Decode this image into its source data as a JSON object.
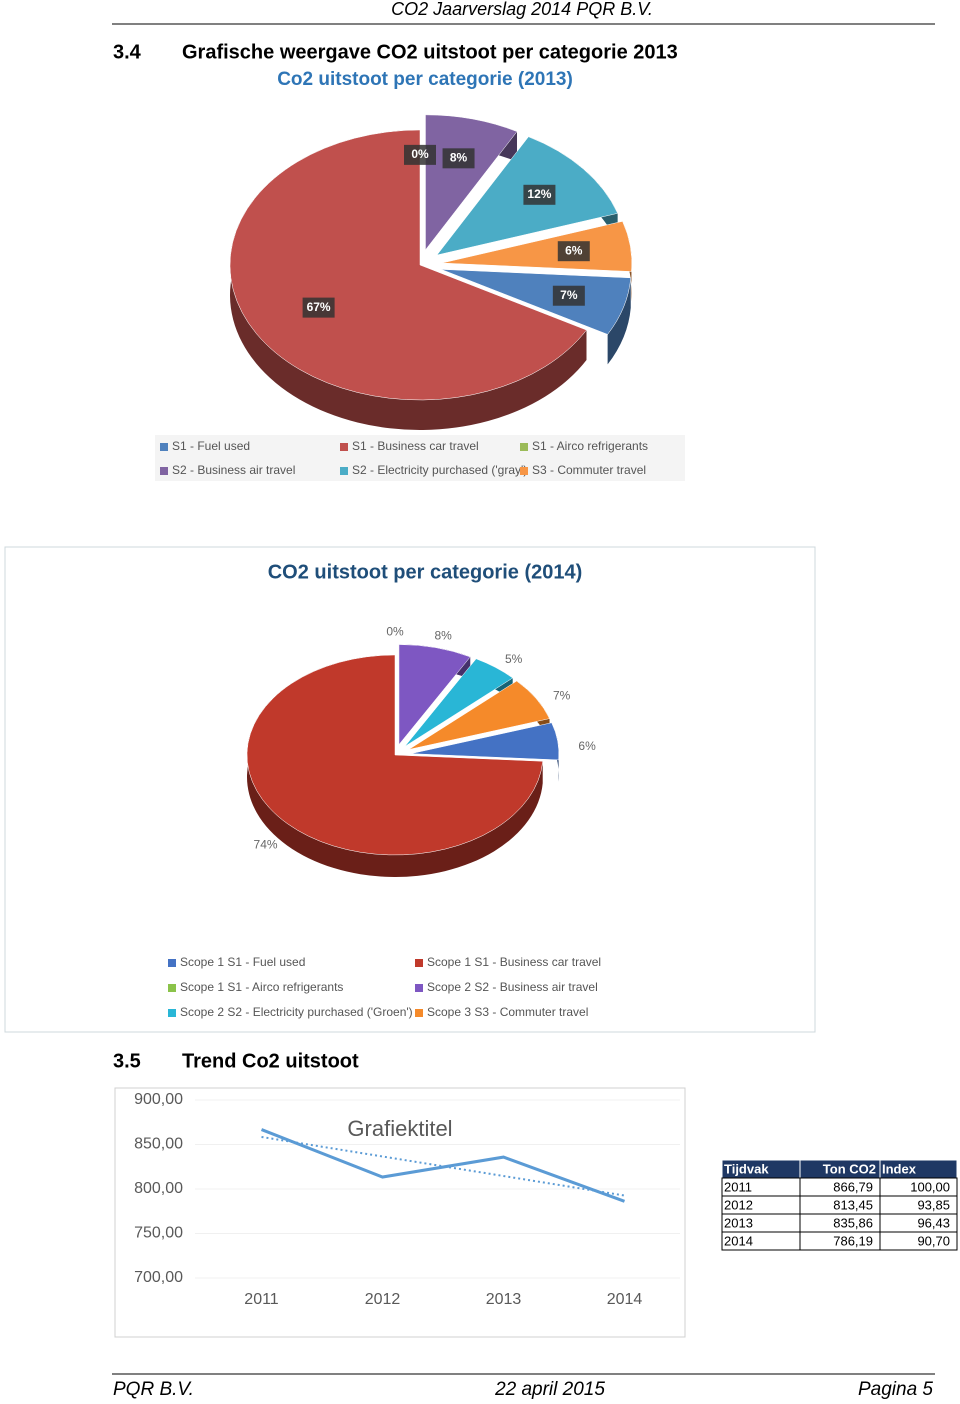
{
  "header": {
    "title": "CO2 Jaarverslag 2014 PQR B.V."
  },
  "sections": [
    {
      "number": "3.4",
      "title": "Grafische weergave CO2 uitstoot per categorie 2013"
    },
    {
      "number": "3.5",
      "title": "Trend Co2 uitstoot"
    }
  ],
  "chart_data": [
    {
      "type": "pie",
      "title": "Co2 uitstoot per categorie (2013)",
      "categories": [
        "S1 - Fuel used",
        "S1 - Business car travel",
        "S1 - Airco refrigerants",
        "S2 - Business air travel",
        "S2 - Electricity purchased ('gray')",
        "S3 - Commuter travel"
      ],
      "values": [
        7,
        67,
        0,
        8,
        12,
        6
      ],
      "value_labels": [
        "7%",
        "67%",
        "0%",
        "8%",
        "12%",
        "6%"
      ],
      "colors": [
        "#4f81bd",
        "#c0504d",
        "#9bbb59",
        "#8064a2",
        "#4bacc6",
        "#f79646"
      ],
      "legend": "bottom"
    },
    {
      "type": "pie",
      "title": "CO2 uitstoot per categorie (2014)",
      "categories": [
        "Scope 1 S1 - Fuel used",
        "Scope 1 S1 - Business car travel",
        "Scope 1 S1 - Airco refrigerants",
        "Scope 2 S2 - Business air travel",
        "Scope 2 S2 - Electricity purchased ('Groen')",
        "Scope 3 S3 - Commuter travel"
      ],
      "values": [
        6,
        74,
        0,
        8,
        5,
        7
      ],
      "value_labels": [
        "6%",
        "74%",
        "0%",
        "8%",
        "5%",
        "7%"
      ],
      "colors": [
        "#4472c4",
        "#c0392b",
        "#8bc34a",
        "#7e57c2",
        "#29b6d6",
        "#f58a2a"
      ],
      "legend": "bottom"
    },
    {
      "type": "line",
      "title": "Grafiektitel",
      "categories": [
        "2011",
        "2012",
        "2013",
        "2014"
      ],
      "values": [
        866.79,
        813.45,
        835.86,
        786.19
      ],
      "color": "#5b9bd5",
      "trendline": "linear",
      "ylim": [
        700,
        900
      ],
      "yticks": [
        {
          "value": 700,
          "label": "700,00"
        },
        {
          "value": 750,
          "label": "750,00"
        },
        {
          "value": 800,
          "label": "800,00"
        },
        {
          "value": 850,
          "label": "850,00"
        },
        {
          "value": 900,
          "label": "900,00"
        }
      ],
      "grid": true
    }
  ],
  "table": {
    "columns": [
      "Tijdvak",
      "Ton CO2",
      "Index"
    ],
    "rows": [
      [
        "2011",
        "866,79",
        "100,00"
      ],
      [
        "2012",
        "813,45",
        "93,85"
      ],
      [
        "2013",
        "835,86",
        "96,43"
      ],
      [
        "2014",
        "786,19",
        "90,70"
      ]
    ]
  },
  "footer": {
    "left": "PQR B.V.",
    "center": "22 april 2015",
    "right": "Pagina 5"
  }
}
